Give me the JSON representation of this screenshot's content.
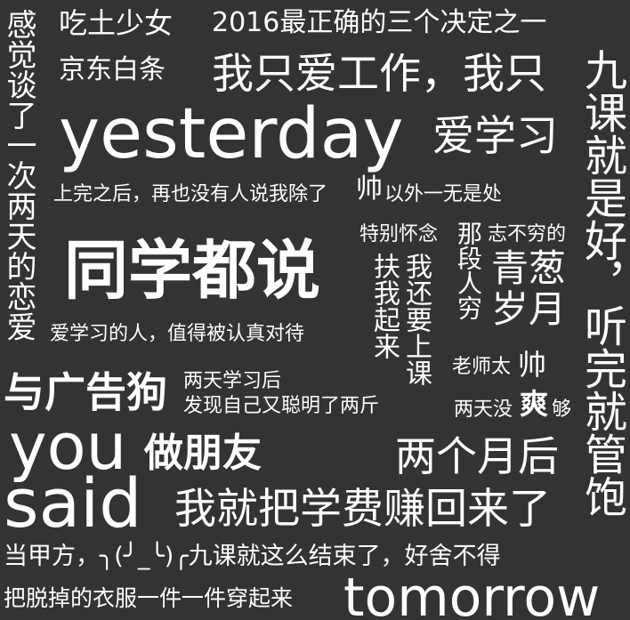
{
  "colors": {
    "background": "#333333",
    "text": "#ffffff"
  },
  "words": {
    "w01": "感觉谈了一次两天的恋爱",
    "w02": "吃土少女",
    "w03": "2016最正确的三个决定之一",
    "w04": "京东白条",
    "w05": "我只爱工作，我只",
    "w06": "九课就是好，听完就管饱",
    "w07": "yesterday",
    "w08": "爱学习",
    "w09": "上完之后，再也没有人说我除了",
    "w10": "帅",
    "w11": "以外一无是处",
    "w12": "特别怀念",
    "w13": "那段人穷",
    "w14": "志不穷的",
    "w15": "青葱岁月",
    "w16": "同学都说",
    "w17": "扶我起来",
    "w18": "我还要上课",
    "w19": "爱学习的人，值得被认真对待",
    "w20": "老师太",
    "w21": "帅",
    "w22": "与广告狗",
    "w23": "两天学习后",
    "w24": "发现自己又聪明了两斤",
    "w25": "两天没",
    "w26": "爽",
    "w27": "够",
    "w28": "you",
    "w29": "做朋友",
    "w30": "两个月后",
    "w31": "said",
    "w32": "我就把学费赚回来了",
    "w33": "当甲方，╮(╯_╰)╭九课就这么结束了，好舍不得",
    "w34": "把脱掉的衣服一件一件穿起来",
    "w35": "tomorrow"
  }
}
